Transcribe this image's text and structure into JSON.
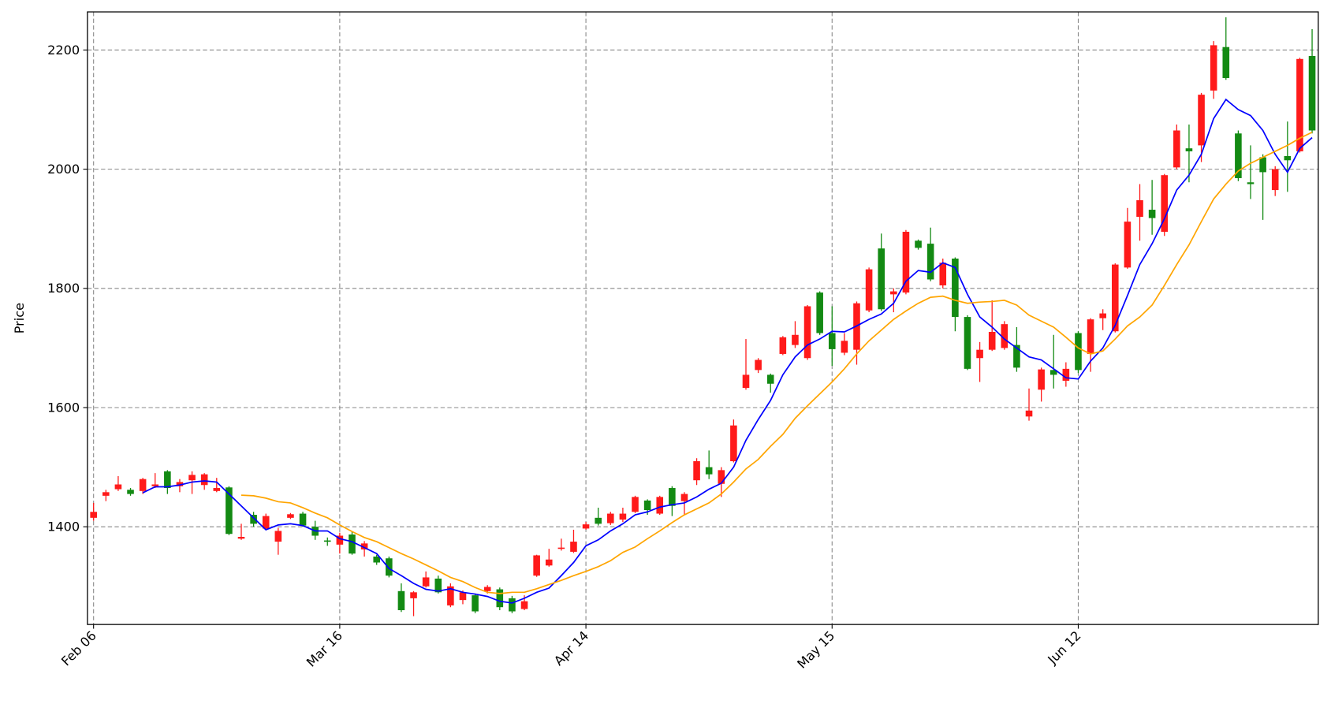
{
  "chart_data": {
    "type": "candlestick",
    "ylabel": "Price",
    "xlim": [
      -0.5,
      99.5
    ],
    "ylim": [
      1236,
      2264
    ],
    "xticks": [
      {
        "value": 0,
        "label": "Feb 06"
      },
      {
        "value": 20,
        "label": "Mar 16"
      },
      {
        "value": 40,
        "label": "Apr 14"
      },
      {
        "value": 60,
        "label": "May 15"
      },
      {
        "value": 80,
        "label": "Jun 12"
      }
    ],
    "yticks": [
      1400,
      1600,
      1800,
      2000,
      2200
    ],
    "grid": true,
    "up_color": "#ff1a1a",
    "down_color": "#138a13",
    "open": [
      1415,
      1452,
      1463,
      1462,
      1460,
      1468,
      1493,
      1468,
      1478,
      1470,
      1460,
      1466,
      1380,
      1420,
      1397,
      1375,
      1415,
      1422,
      1400,
      1377,
      1370,
      1387,
      1362,
      1350,
      1347,
      1292,
      1280,
      1300,
      1313,
      1268,
      1277,
      1285,
      1292,
      1295,
      1280,
      1262,
      1318,
      1335,
      1363,
      1358,
      1397,
      1415,
      1406,
      1412,
      1425,
      1444,
      1422,
      1465,
      1443,
      1478,
      1500,
      1472,
      1510,
      1633,
      1663,
      1655,
      1690,
      1705,
      1683,
      1793,
      1725,
      1692,
      1697,
      1763,
      1867,
      1790,
      1793,
      1880,
      1875,
      1805,
      1850,
      1752,
      1683,
      1697,
      1700,
      1705,
      1585,
      1630,
      1663,
      1645,
      1725,
      1690,
      1750,
      1728,
      1835,
      1920,
      1932,
      1895,
      2003,
      2035,
      2040,
      2132,
      2205,
      2060,
      1978,
      2020,
      1965,
      2022,
      2030,
      2190
    ],
    "high": [
      1440,
      1462,
      1485,
      1465,
      1482,
      1490,
      1495,
      1480,
      1493,
      1490,
      1482,
      1468,
      1405,
      1425,
      1422,
      1398,
      1423,
      1425,
      1410,
      1382,
      1390,
      1392,
      1376,
      1353,
      1350,
      1305,
      1292,
      1325,
      1318,
      1305,
      1293,
      1288,
      1302,
      1298,
      1284,
      1285,
      1353,
      1363,
      1380,
      1395,
      1408,
      1432,
      1425,
      1432,
      1452,
      1446,
      1452,
      1468,
      1458,
      1515,
      1528,
      1500,
      1580,
      1715,
      1683,
      1657,
      1720,
      1745,
      1772,
      1795,
      1770,
      1725,
      1778,
      1835,
      1892,
      1800,
      1898,
      1882,
      1902,
      1850,
      1852,
      1755,
      1710,
      1780,
      1745,
      1735,
      1632,
      1667,
      1722,
      1676,
      1728,
      1750,
      1765,
      1842,
      1935,
      1975,
      1982,
      1992,
      2075,
      2075,
      2128,
      2215,
      2255,
      2065,
      2040,
      2025,
      2005,
      2080,
      2187,
      2235
    ],
    "low": [
      1410,
      1443,
      1460,
      1452,
      1455,
      1465,
      1455,
      1458,
      1455,
      1462,
      1458,
      1386,
      1378,
      1400,
      1395,
      1353,
      1413,
      1400,
      1378,
      1368,
      1355,
      1353,
      1350,
      1336,
      1315,
      1257,
      1250,
      1298,
      1288,
      1265,
      1270,
      1255,
      1288,
      1260,
      1255,
      1260,
      1316,
      1333,
      1360,
      1356,
      1395,
      1402,
      1403,
      1408,
      1423,
      1420,
      1420,
      1418,
      1420,
      1470,
      1480,
      1450,
      1508,
      1630,
      1658,
      1625,
      1688,
      1700,
      1680,
      1722,
      1670,
      1688,
      1672,
      1760,
      1762,
      1760,
      1790,
      1865,
      1812,
      1800,
      1728,
      1663,
      1643,
      1695,
      1697,
      1660,
      1578,
      1610,
      1632,
      1635,
      1658,
      1660,
      1730,
      1726,
      1833,
      1880,
      1890,
      1888,
      2000,
      1978,
      2012,
      2118,
      2150,
      1980,
      1950,
      1915,
      1955,
      1962,
      2028,
      2060
    ],
    "close": [
      1425,
      1458,
      1471,
      1455,
      1480,
      1471,
      1465,
      1475,
      1487,
      1488,
      1465,
      1388,
      1383,
      1405,
      1418,
      1393,
      1421,
      1402,
      1385,
      1375,
      1385,
      1355,
      1372,
      1340,
      1318,
      1260,
      1290,
      1315,
      1290,
      1300,
      1290,
      1258,
      1299,
      1265,
      1258,
      1275,
      1352,
      1345,
      1365,
      1375,
      1404,
      1405,
      1422,
      1422,
      1450,
      1428,
      1450,
      1435,
      1455,
      1510,
      1488,
      1495,
      1570,
      1655,
      1680,
      1640,
      1718,
      1722,
      1770,
      1725,
      1698,
      1712,
      1775,
      1832,
      1765,
      1795,
      1895,
      1868,
      1815,
      1843,
      1752,
      1665,
      1697,
      1727,
      1740,
      1667,
      1595,
      1664,
      1655,
      1665,
      1663,
      1748,
      1758,
      1840,
      1912,
      1948,
      1918,
      1990,
      2065,
      2030,
      2125,
      2208,
      2153,
      1985,
      1975,
      1995,
      2000,
      2015,
      2185,
      2065
    ],
    "series": [
      {
        "color": "#0000ff",
        "values": [
          null,
          null,
          null,
          null,
          1457,
          1467,
          1467,
          1470,
          1475,
          1477,
          1475,
          1455,
          1435,
          1415,
          1395,
          1403,
          1405,
          1402,
          1393,
          1393,
          1380,
          1375,
          1365,
          1355,
          1330,
          1318,
          1305,
          1295,
          1292,
          1296,
          1290,
          1287,
          1283,
          1275,
          1272,
          1280,
          1290,
          1297,
          1318,
          1340,
          1368,
          1378,
          1393,
          1405,
          1420,
          1425,
          1433,
          1437,
          1440,
          1450,
          1463,
          1473,
          1500,
          1545,
          1580,
          1612,
          1655,
          1685,
          1705,
          1715,
          1728,
          1727,
          1737,
          1748,
          1757,
          1775,
          1812,
          1830,
          1827,
          1843,
          1835,
          1790,
          1752,
          1735,
          1715,
          1700,
          1685,
          1680,
          1665,
          1650,
          1648,
          1678,
          1700,
          1738,
          1788,
          1840,
          1875,
          1917,
          1965,
          1990,
          2025,
          2085,
          2117,
          2100,
          2090,
          2065,
          2025,
          1995,
          2035,
          2053
        ]
      },
      {
        "color": "#ffa500",
        "values": [
          null,
          null,
          null,
          null,
          null,
          null,
          null,
          null,
          null,
          null,
          null,
          null,
          1453,
          1452,
          1448,
          1442,
          1440,
          1432,
          1423,
          1415,
          1403,
          1392,
          1382,
          1375,
          1365,
          1355,
          1346,
          1336,
          1326,
          1315,
          1308,
          1298,
          1290,
          1288,
          1290,
          1290,
          1296,
          1303,
          1310,
          1318,
          1325,
          1333,
          1343,
          1357,
          1366,
          1380,
          1393,
          1407,
          1420,
          1430,
          1440,
          1455,
          1475,
          1497,
          1513,
          1535,
          1555,
          1582,
          1603,
          1623,
          1643,
          1665,
          1690,
          1712,
          1730,
          1748,
          1762,
          1775,
          1785,
          1787,
          1780,
          1775,
          1777,
          1778,
          1780,
          1772,
          1755,
          1745,
          1735,
          1718,
          1700,
          1690,
          1695,
          1715,
          1737,
          1752,
          1772,
          1805,
          1840,
          1873,
          1912,
          1950,
          1975,
          1997,
          2010,
          2020,
          2030,
          2040,
          2052,
          2062
        ]
      }
    ]
  }
}
